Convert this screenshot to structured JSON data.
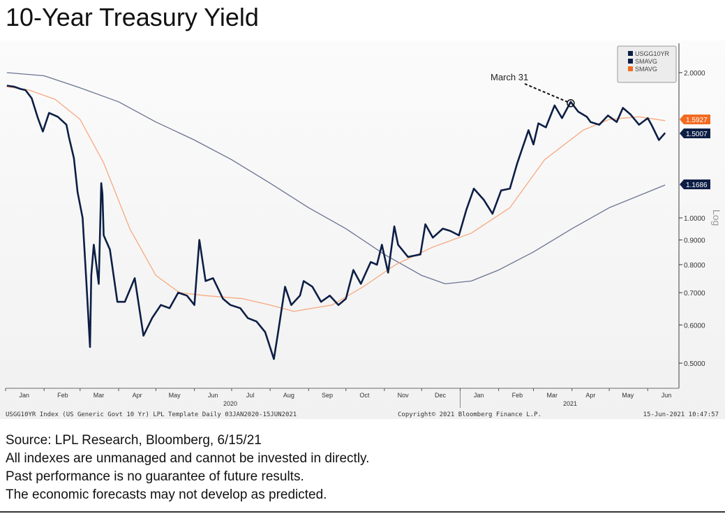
{
  "title": "10-Year Treasury Yield",
  "notes": [
    "Source: LPL Research, Bloomberg, 6/15/21",
    "All indexes are unmanaged and cannot be invested in directly.",
    "Past performance is no guarantee of future results.",
    "The economic forecasts may not develop as predicted."
  ],
  "footer": {
    "left": "USGG10YR Index (US Generic Govt 10 Yr) LPL Template  Daily 03JAN2020-15JUN2021",
    "center": "Copyright© 2021 Bloomberg Finance L.P.",
    "right": "15-Jun-2021 10:47:57"
  },
  "chart_data": {
    "type": "line",
    "title": "10-Year Treasury Yield",
    "y_scale": "log",
    "y_axis_label": "Log",
    "y_ticks": [
      "2.0000",
      "1.0000",
      "0.9000",
      "0.8000",
      "0.7000",
      "0.6000",
      "0.5000"
    ],
    "x_ticks": [
      "Jan",
      "Feb",
      "Mar",
      "Apr",
      "May",
      "Jun",
      "Jul",
      "Aug",
      "Sep",
      "Oct",
      "Nov",
      "Dec",
      "Jan",
      "Feb",
      "Mar",
      "Apr",
      "May",
      "Jun"
    ],
    "x_years": [
      "2020",
      "2021"
    ],
    "legend": [
      "USGG10YR",
      "SMAVG",
      "SMAVG"
    ],
    "legend_position": "top-right",
    "last_value_labels": [
      {
        "value": "1.5927",
        "color": "#f26b21"
      },
      {
        "value": "1.5007",
        "color": "#0d1e45"
      },
      {
        "value": "1.1686",
        "color": "#0d1e45"
      }
    ],
    "annotation": {
      "text": "March 31",
      "date": "2021-03-31",
      "value": 1.74
    },
    "colors": {
      "yield": "#0d1e45",
      "sma_short": "#f7a980",
      "sma_long": "#6a7392"
    },
    "series": [
      {
        "name": "USGG10YR",
        "points": [
          [
            "2020-01-02",
            1.88
          ],
          [
            "2020-01-08",
            1.87
          ],
          [
            "2020-01-13",
            1.85
          ],
          [
            "2020-01-17",
            1.84
          ],
          [
            "2020-01-22",
            1.77
          ],
          [
            "2020-01-27",
            1.61
          ],
          [
            "2020-01-31",
            1.51
          ],
          [
            "2020-02-05",
            1.65
          ],
          [
            "2020-02-12",
            1.62
          ],
          [
            "2020-02-19",
            1.56
          ],
          [
            "2020-02-21",
            1.47
          ],
          [
            "2020-02-25",
            1.33
          ],
          [
            "2020-02-28",
            1.13
          ],
          [
            "2020-03-03",
            1.0
          ],
          [
            "2020-03-06",
            0.74
          ],
          [
            "2020-03-09",
            0.54
          ],
          [
            "2020-03-10",
            0.76
          ],
          [
            "2020-03-12",
            0.88
          ],
          [
            "2020-03-16",
            0.73
          ],
          [
            "2020-03-18",
            1.18
          ],
          [
            "2020-03-19",
            1.12
          ],
          [
            "2020-03-20",
            0.92
          ],
          [
            "2020-03-25",
            0.86
          ],
          [
            "2020-03-31",
            0.67
          ],
          [
            "2020-04-06",
            0.67
          ],
          [
            "2020-04-14",
            0.75
          ],
          [
            "2020-04-21",
            0.57
          ],
          [
            "2020-04-28",
            0.62
          ],
          [
            "2020-05-05",
            0.66
          ],
          [
            "2020-05-12",
            0.65
          ],
          [
            "2020-05-19",
            0.7
          ],
          [
            "2020-05-26",
            0.69
          ],
          [
            "2020-06-01",
            0.66
          ],
          [
            "2020-06-05",
            0.9
          ],
          [
            "2020-06-10",
            0.74
          ],
          [
            "2020-06-16",
            0.75
          ],
          [
            "2020-06-24",
            0.68
          ],
          [
            "2020-06-30",
            0.66
          ],
          [
            "2020-07-08",
            0.65
          ],
          [
            "2020-07-14",
            0.62
          ],
          [
            "2020-07-21",
            0.61
          ],
          [
            "2020-07-28",
            0.58
          ],
          [
            "2020-08-04",
            0.51
          ],
          [
            "2020-08-07",
            0.57
          ],
          [
            "2020-08-13",
            0.72
          ],
          [
            "2020-08-18",
            0.66
          ],
          [
            "2020-08-25",
            0.69
          ],
          [
            "2020-08-28",
            0.74
          ],
          [
            "2020-09-04",
            0.72
          ],
          [
            "2020-09-11",
            0.67
          ],
          [
            "2020-09-18",
            0.69
          ],
          [
            "2020-09-25",
            0.66
          ],
          [
            "2020-10-01",
            0.68
          ],
          [
            "2020-10-07",
            0.78
          ],
          [
            "2020-10-13",
            0.73
          ],
          [
            "2020-10-21",
            0.81
          ],
          [
            "2020-10-26",
            0.8
          ],
          [
            "2020-10-30",
            0.88
          ],
          [
            "2020-11-04",
            0.77
          ],
          [
            "2020-11-09",
            0.96
          ],
          [
            "2020-11-12",
            0.88
          ],
          [
            "2020-11-20",
            0.83
          ],
          [
            "2020-11-30",
            0.84
          ],
          [
            "2020-12-04",
            0.97
          ],
          [
            "2020-12-10",
            0.91
          ],
          [
            "2020-12-18",
            0.95
          ],
          [
            "2020-12-24",
            0.94
          ],
          [
            "2020-12-31",
            0.92
          ],
          [
            "2021-01-06",
            1.04
          ],
          [
            "2021-01-12",
            1.15
          ],
          [
            "2021-01-20",
            1.09
          ],
          [
            "2021-01-27",
            1.02
          ],
          [
            "2021-02-03",
            1.14
          ],
          [
            "2021-02-10",
            1.15
          ],
          [
            "2021-02-16",
            1.3
          ],
          [
            "2021-02-25",
            1.52
          ],
          [
            "2021-03-01",
            1.42
          ],
          [
            "2021-03-05",
            1.57
          ],
          [
            "2021-03-11",
            1.54
          ],
          [
            "2021-03-18",
            1.71
          ],
          [
            "2021-03-24",
            1.61
          ],
          [
            "2021-03-31",
            1.74
          ],
          [
            "2021-04-06",
            1.66
          ],
          [
            "2021-04-13",
            1.62
          ],
          [
            "2021-04-16",
            1.58
          ],
          [
            "2021-04-23",
            1.56
          ],
          [
            "2021-04-30",
            1.63
          ],
          [
            "2021-05-07",
            1.58
          ],
          [
            "2021-05-12",
            1.69
          ],
          [
            "2021-05-18",
            1.64
          ],
          [
            "2021-05-25",
            1.56
          ],
          [
            "2021-06-01",
            1.61
          ],
          [
            "2021-06-04",
            1.56
          ],
          [
            "2021-06-10",
            1.45
          ],
          [
            "2021-06-15",
            1.5
          ]
        ]
      },
      {
        "name": "SMAVG",
        "points": [
          [
            "2020-01-02",
            2.0
          ],
          [
            "2020-02-01",
            1.97
          ],
          [
            "2020-03-01",
            1.86
          ],
          [
            "2020-04-01",
            1.74
          ],
          [
            "2020-05-01",
            1.58
          ],
          [
            "2020-06-01",
            1.45
          ],
          [
            "2020-07-01",
            1.32
          ],
          [
            "2020-08-01",
            1.18
          ],
          [
            "2020-09-01",
            1.05
          ],
          [
            "2020-10-01",
            0.95
          ],
          [
            "2020-11-01",
            0.84
          ],
          [
            "2020-12-01",
            0.76
          ],
          [
            "2020-12-20",
            0.73
          ],
          [
            "2021-01-10",
            0.74
          ],
          [
            "2021-02-01",
            0.78
          ],
          [
            "2021-03-01",
            0.85
          ],
          [
            "2021-04-01",
            0.95
          ],
          [
            "2021-05-01",
            1.05
          ],
          [
            "2021-06-15",
            1.17
          ]
        ]
      },
      {
        "name": "SMAVG",
        "points": [
          [
            "2020-01-02",
            1.87
          ],
          [
            "2020-01-20",
            1.84
          ],
          [
            "2020-02-10",
            1.76
          ],
          [
            "2020-03-01",
            1.6
          ],
          [
            "2020-03-20",
            1.3
          ],
          [
            "2020-04-10",
            0.95
          ],
          [
            "2020-05-01",
            0.76
          ],
          [
            "2020-05-20",
            0.7
          ],
          [
            "2020-06-10",
            0.69
          ],
          [
            "2020-07-10",
            0.68
          ],
          [
            "2020-08-01",
            0.66
          ],
          [
            "2020-08-20",
            0.64
          ],
          [
            "2020-09-20",
            0.66
          ],
          [
            "2020-10-15",
            0.72
          ],
          [
            "2020-11-10",
            0.8
          ],
          [
            "2020-12-10",
            0.87
          ],
          [
            "2021-01-10",
            0.93
          ],
          [
            "2021-02-10",
            1.05
          ],
          [
            "2021-03-10",
            1.32
          ],
          [
            "2021-04-10",
            1.52
          ],
          [
            "2021-05-01",
            1.6
          ],
          [
            "2021-05-25",
            1.62
          ],
          [
            "2021-06-15",
            1.59
          ]
        ]
      }
    ]
  }
}
